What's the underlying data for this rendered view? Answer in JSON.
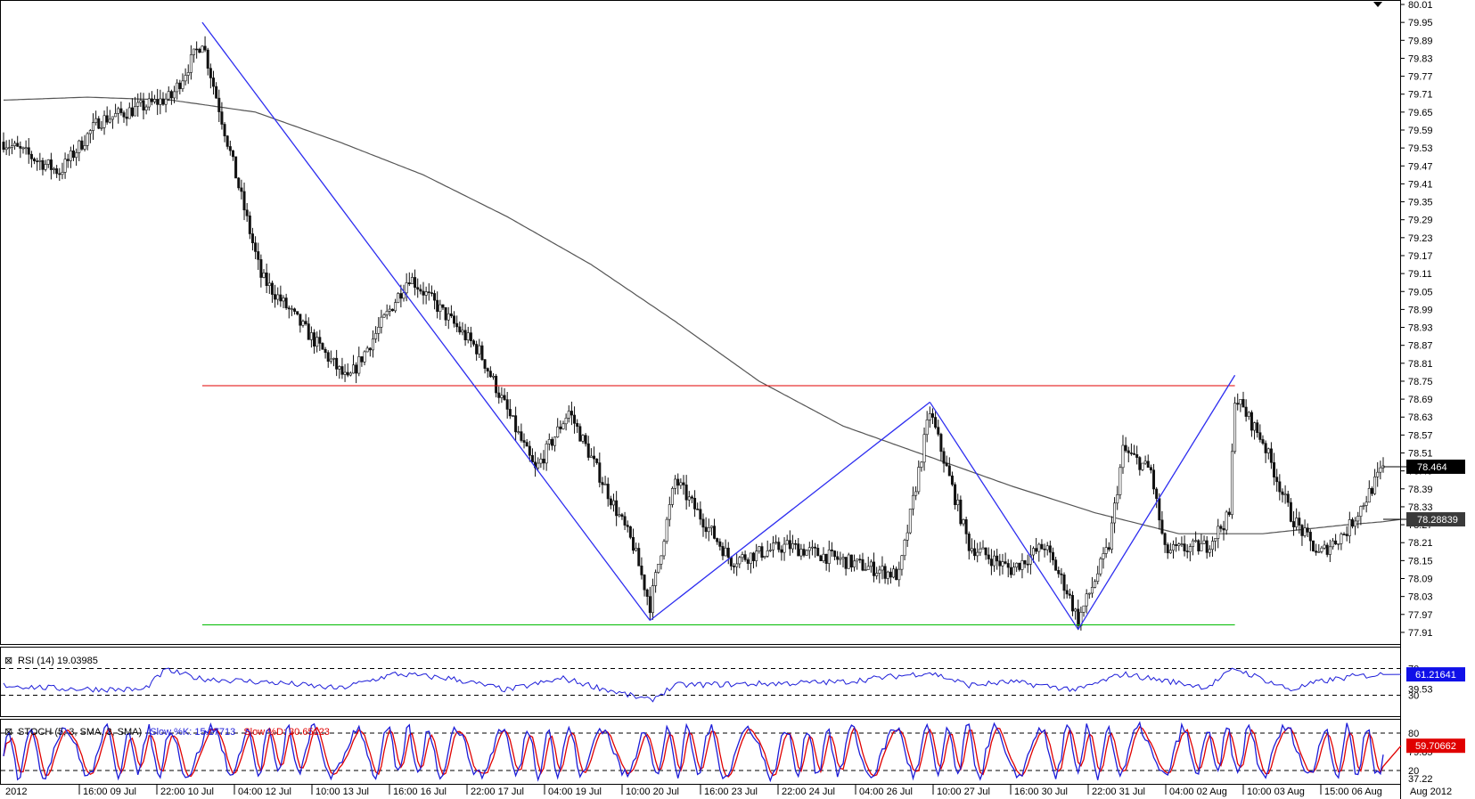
{
  "chart_data": {
    "type": "line",
    "main_panel": {
      "series_type": "candlestick",
      "ylim": [
        77.88,
        80.01
      ],
      "y_ticks": [
        "80.01",
        "79.95",
        "79.89",
        "79.83",
        "79.77",
        "79.71",
        "79.65",
        "79.59",
        "79.53",
        "79.47",
        "79.41",
        "79.35",
        "79.29",
        "79.23",
        "79.17",
        "79.11",
        "79.05",
        "78.99",
        "78.93",
        "78.87",
        "78.81",
        "78.75",
        "78.69",
        "78.63",
        "78.57",
        "78.51",
        "78.45",
        "78.39",
        "78.33",
        "78.27",
        "78.21",
        "78.15",
        "78.09",
        "78.03",
        "77.97",
        "77.91"
      ],
      "x_labels": [
        "2012",
        "16:00 09 Jul",
        "22:00 10 Jul",
        "04:00 12 Jul",
        "10:00 13 Jul",
        "16:00 16 Jul",
        "22:00 17 Jul",
        "04:00 19 Jul",
        "10:00 20 Jul",
        "16:00 23 Jul",
        "22:00 24 Jul",
        "04:00 26 Jul",
        "10:00 27 Jul",
        "16:00 30 Jul",
        "22:00 31 Jul",
        "04:00 02 Aug",
        "10:00 03 Aug",
        "15:00 06 Aug",
        "Aug 2012"
      ],
      "price_marks": [
        {
          "label": "78.464",
          "value": 78.464,
          "color": "#ffffff",
          "bg": "#000000"
        },
        {
          "label": "78.28839",
          "value": 78.288,
          "color": "#ffffff",
          "bg": "#3a3a3a"
        }
      ],
      "sma_anchors": [
        [
          0,
          79.69
        ],
        [
          30,
          79.7
        ],
        [
          60,
          79.69
        ],
        [
          90,
          79.65
        ],
        [
          120,
          79.55
        ],
        [
          150,
          79.44
        ],
        [
          180,
          79.3
        ],
        [
          210,
          79.14
        ],
        [
          240,
          78.95
        ],
        [
          270,
          78.75
        ],
        [
          300,
          78.6
        ],
        [
          330,
          78.5
        ],
        [
          360,
          78.4
        ],
        [
          390,
          78.31
        ],
        [
          420,
          78.24
        ],
        [
          450,
          78.24
        ],
        [
          480,
          78.27
        ],
        [
          493,
          78.28
        ]
      ],
      "wave_lines": [
        {
          "points": [
            [
              71,
              79.95
            ],
            [
              231,
              77.95
            ]
          ],
          "color": "#2e2ef0"
        },
        {
          "points": [
            [
              231,
              77.95
            ],
            [
              331,
              78.68
            ]
          ],
          "color": "#2e2ef0"
        },
        {
          "points": [
            [
              331,
              78.68
            ],
            [
              384,
              77.92
            ]
          ],
          "color": "#2e2ef0"
        },
        {
          "points": [
            [
              384,
              77.92
            ],
            [
              440,
              78.77
            ]
          ],
          "color": "#2e2ef0"
        }
      ],
      "resistance": {
        "value": 78.735,
        "x0": 71,
        "x1": 440,
        "color": "#e00000"
      },
      "support": {
        "value": 77.935,
        "x0": 71,
        "x1": 440,
        "color": "#00bb00"
      },
      "key_bars": [
        [
          0,
          79.55
        ],
        [
          20,
          79.45
        ],
        [
          34,
          79.62
        ],
        [
          60,
          79.7
        ],
        [
          71,
          79.89
        ],
        [
          92,
          79.1
        ],
        [
          123,
          78.75
        ],
        [
          145,
          79.1
        ],
        [
          170,
          78.85
        ],
        [
          190,
          78.45
        ],
        [
          202,
          78.65
        ],
        [
          225,
          78.2
        ],
        [
          231,
          78.0
        ],
        [
          240,
          78.42
        ],
        [
          260,
          78.15
        ],
        [
          280,
          78.2
        ],
        [
          300,
          78.15
        ],
        [
          320,
          78.1
        ],
        [
          326,
          78.4
        ],
        [
          331,
          78.65
        ],
        [
          345,
          78.2
        ],
        [
          360,
          78.12
        ],
        [
          372,
          78.2
        ],
        [
          380,
          78.05
        ],
        [
          384,
          77.95
        ],
        [
          395,
          78.2
        ],
        [
          400,
          78.52
        ],
        [
          410,
          78.45
        ],
        [
          415,
          78.18
        ],
        [
          430,
          78.2
        ],
        [
          438,
          78.3
        ],
        [
          440,
          78.7
        ],
        [
          450,
          78.55
        ],
        [
          460,
          78.3
        ],
        [
          470,
          78.17
        ],
        [
          480,
          78.25
        ],
        [
          487,
          78.36
        ],
        [
          493,
          78.46
        ]
      ]
    },
    "rsi_panel": {
      "label": "RSI (14) 19.03985",
      "levels": [
        70,
        30
      ],
      "marks": [
        "70",
        "30",
        "39.53"
      ],
      "current": "61.21641",
      "current_value": 61.2,
      "color": "#1c1cd8",
      "key_points": [
        [
          0,
          45
        ],
        [
          20,
          40
        ],
        [
          50,
          38
        ],
        [
          58,
          68
        ],
        [
          70,
          55
        ],
        [
          100,
          48
        ],
        [
          120,
          40
        ],
        [
          140,
          62
        ],
        [
          160,
          55
        ],
        [
          180,
          38
        ],
        [
          200,
          55
        ],
        [
          231,
          22
        ],
        [
          240,
          45
        ],
        [
          280,
          48
        ],
        [
          300,
          50
        ],
        [
          331,
          64
        ],
        [
          345,
          45
        ],
        [
          360,
          50
        ],
        [
          384,
          38
        ],
        [
          400,
          62
        ],
        [
          410,
          55
        ],
        [
          430,
          42
        ],
        [
          440,
          70
        ],
        [
          460,
          38
        ],
        [
          470,
          50
        ],
        [
          482,
          58
        ],
        [
          493,
          61
        ]
      ]
    },
    "stoch_panel": {
      "label": "STOCH (5, 3, SMA, 3, SMA)",
      "k_label": "Slow %K: 15.17713",
      "d_label": "Slow %D: 30.65123",
      "levels": [
        80,
        20
      ],
      "marks": [
        "80",
        "20",
        "79.85",
        "37.22"
      ],
      "current": "59.70662",
      "current_value": 59.7,
      "k_color": "#1c1cd8",
      "d_color": "#e00000"
    }
  }
}
